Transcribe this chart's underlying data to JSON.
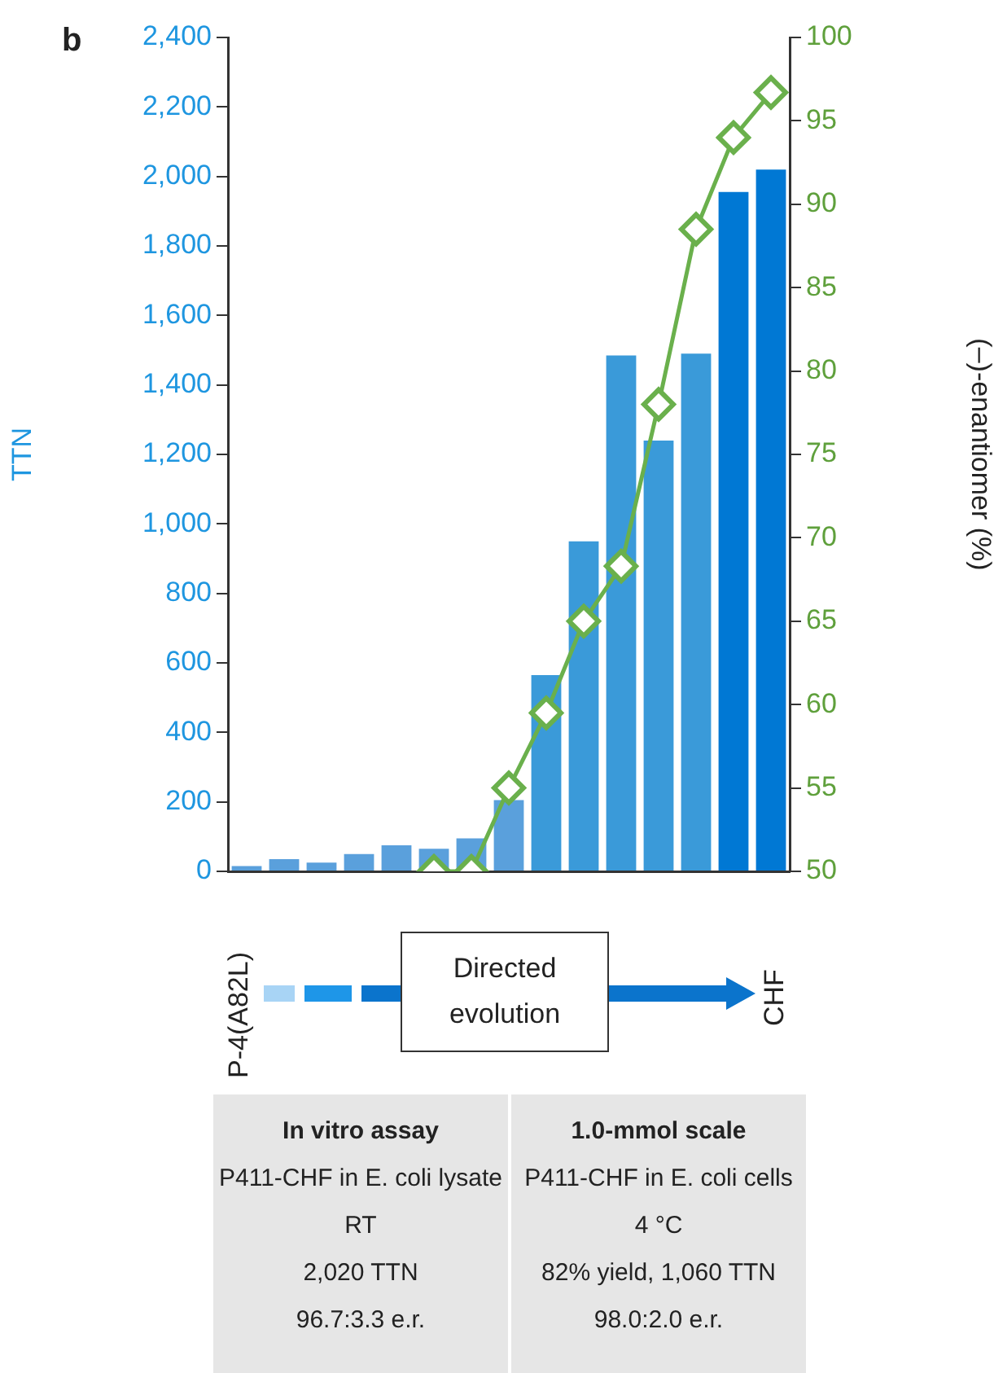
{
  "chart_data": {
    "type": "bar",
    "categories": [
      null,
      null,
      null,
      null,
      null,
      null,
      null,
      null,
      null,
      null,
      null,
      null,
      null,
      null,
      null
    ],
    "ylabel": "TTN",
    "y2label": "(–)-enantiomer (%)",
    "ylim": [
      0,
      2400
    ],
    "yticks": [
      0,
      200,
      400,
      600,
      {
        "value": 800,
        "label": "800"
      },
      {
        "value": 1000,
        "label": "1,000"
      },
      {
        "value": 1200,
        "label": "1,200"
      },
      {
        "value": 1400,
        "label": "1,400"
      },
      {
        "value": 1600,
        "label": "1,600"
      },
      {
        "value": 1800,
        "label": "1,800"
      },
      {
        "value": 2000,
        "label": "2,000"
      },
      {
        "value": 2200,
        "label": "2,200"
      },
      {
        "value": 2400,
        "label": "2,400"
      }
    ],
    "y2lim": [
      50,
      100
    ],
    "y2ticks": [
      50,
      55,
      60,
      65,
      70,
      75,
      80,
      85,
      90,
      95,
      100
    ],
    "series": [
      {
        "values": [
          15,
          35,
          25,
          50,
          75,
          65,
          95,
          205,
          565,
          950,
          1485,
          1240,
          1490,
          1955,
          2020
        ],
        "colors": [
          "#5aa0dc",
          "#5aa0dc",
          "#5aa0dc",
          "#5aa0dc",
          "#5aa0dc",
          "#5aa0dc",
          "#5aa0dc",
          "#5aa0dc",
          "#3a9ad9",
          "#3a9ad9",
          "#3a9ad9",
          "#3a9ad9",
          "#3a9ad9",
          "#0078d4",
          "#0078d4"
        ]
      },
      {
        "type": "line",
        "axis": "y2",
        "color": "#6ab04c",
        "marker": "diamond",
        "values": [
          null,
          null,
          null,
          null,
          null,
          50,
          50,
          55,
          59.5,
          65,
          68.3,
          78,
          88.5,
          94,
          96.7
        ]
      }
    ],
    "grid": false,
    "legend": false,
    "annotations": [
      "b",
      "P-4(A82L)",
      "Directed evolution",
      "CHF",
      "In vitro assay",
      "P411-CHF in E. coli lysate",
      "RT",
      "2,020 TTN",
      "96.7:3.3 e.r.",
      "1.0-mmol scale",
      "P411-CHF in E. coli cells",
      "4 °C",
      "82% yield, 1,060 TTN",
      "98.0:2.0 e.r."
    ]
  }
}
